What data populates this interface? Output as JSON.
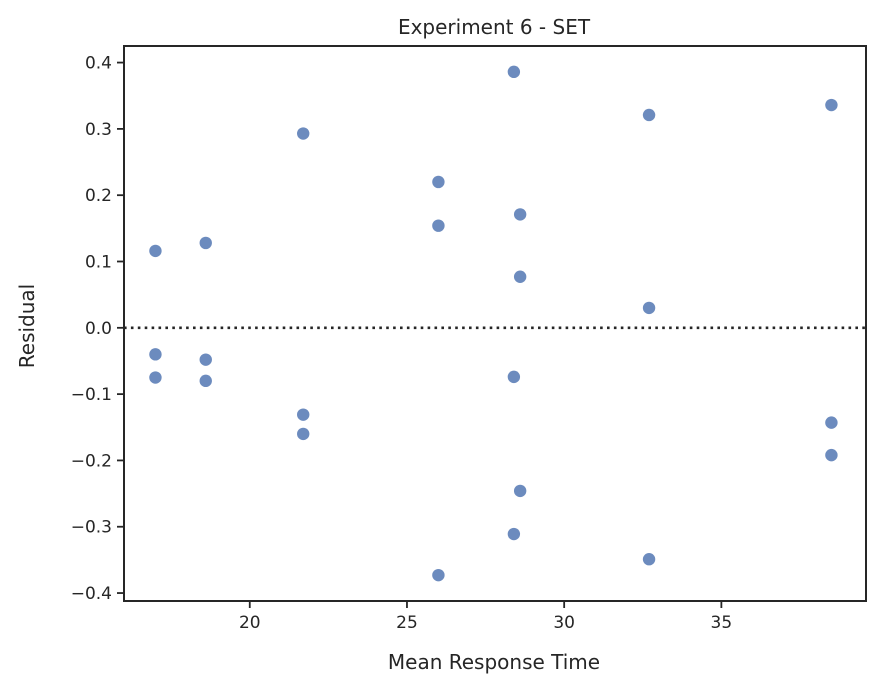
{
  "chart_data": {
    "type": "scatter",
    "title": "Experiment 6 - SET",
    "xlabel": "Mean Response Time",
    "ylabel": "Residual",
    "xlim": [
      16.0,
      39.6
    ],
    "ylim": [
      -0.412,
      0.425
    ],
    "xticks": [
      20,
      25,
      30,
      35
    ],
    "yticks": [
      0.4,
      0.3,
      0.2,
      0.1,
      0.0,
      -0.1,
      -0.2,
      -0.3,
      -0.4
    ],
    "xtick_labels": [
      "20",
      "25",
      "30",
      "35"
    ],
    "ytick_labels": [
      "0.4",
      "0.3",
      "0.2",
      "0.1",
      "0.0",
      "−0.1",
      "−0.2",
      "−0.3",
      "−0.4"
    ],
    "reference_line": {
      "y": 0.0,
      "style": "dotted"
    },
    "grid": false,
    "colors": {
      "marker": "#4c72b0",
      "axes": "#262626",
      "text": "#262626"
    },
    "series": [
      {
        "points": [
          [
            17.0,
            0.116
          ],
          [
            17.0,
            -0.04
          ],
          [
            17.0,
            -0.075
          ],
          [
            18.6,
            0.128
          ],
          [
            18.6,
            -0.048
          ],
          [
            18.6,
            -0.08
          ],
          [
            21.7,
            0.293
          ],
          [
            21.7,
            -0.131
          ],
          [
            21.7,
            -0.16
          ],
          [
            26.0,
            0.22
          ],
          [
            26.0,
            0.154
          ],
          [
            26.0,
            -0.373
          ],
          [
            28.4,
            0.386
          ],
          [
            28.4,
            -0.074
          ],
          [
            28.4,
            -0.311
          ],
          [
            28.6,
            0.171
          ],
          [
            28.6,
            0.077
          ],
          [
            28.6,
            -0.246
          ],
          [
            32.7,
            0.321
          ],
          [
            32.7,
            0.03
          ],
          [
            32.7,
            -0.349
          ],
          [
            38.5,
            0.336
          ],
          [
            38.5,
            -0.143
          ],
          [
            38.5,
            -0.192
          ]
        ]
      }
    ]
  }
}
